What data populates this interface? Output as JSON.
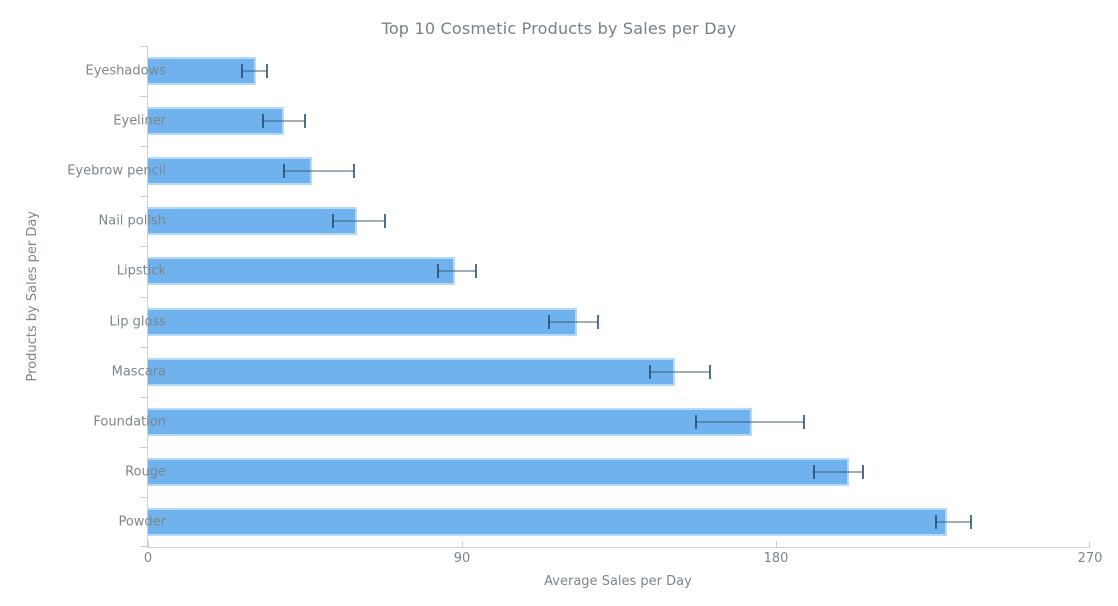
{
  "chart_data": {
    "type": "bar",
    "orientation": "horizontal",
    "title": "Top 10 Cosmetic Products by Sales per Day",
    "xlabel": "Average Sales per Day",
    "ylabel": "Products by Sales per Day",
    "categories": [
      "Eyeshadows",
      "Eyeliner",
      "Eyebrow pencil",
      "Nail polish",
      "Lipstick",
      "Lip gloss",
      "Mascara",
      "Foundation",
      "Rouge",
      "Powder"
    ],
    "values": [
      31,
      39,
      47,
      60,
      88,
      123,
      151,
      173,
      201,
      229
    ],
    "error_low": [
      27,
      33,
      39,
      53,
      83,
      115,
      144,
      157,
      191,
      226
    ],
    "error_high": [
      34,
      45,
      59,
      68,
      94,
      129,
      161,
      188,
      205,
      236
    ],
    "xlim": [
      0,
      270
    ],
    "x_ticks": [
      0,
      90,
      180,
      270
    ],
    "x_tick_labels": [
      "0",
      "90",
      "180",
      "270"
    ],
    "grid": false,
    "legend": false,
    "colors": {
      "bar_fill": "#6fb2ed",
      "bar_border": "#b3d9f7",
      "error_line": "rgba(62,92,118,0.5)",
      "error_tick": "rgba(30,72,110,0.78)",
      "axis_line": "#cfcfcf",
      "label_text": "#7c868e",
      "title_text": "#75808a"
    }
  }
}
